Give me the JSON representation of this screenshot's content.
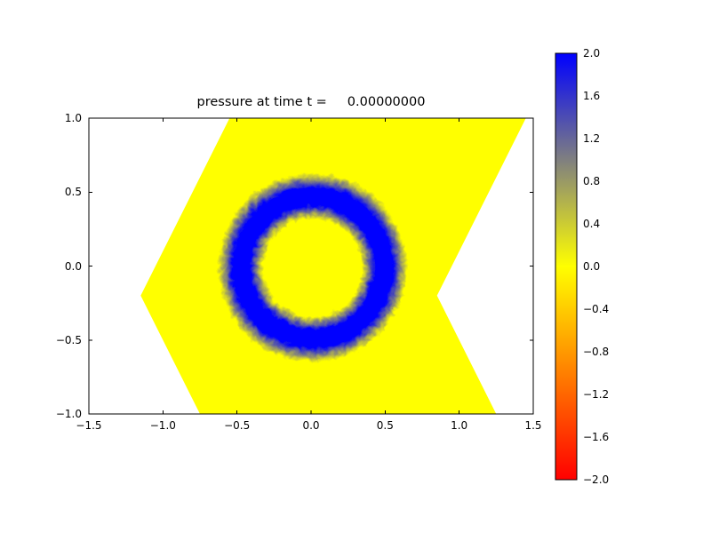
{
  "chart_data": {
    "type": "pseudocolor-mesh",
    "title": "pressure at time t =     0.00000000",
    "xlim": [
      -1.5,
      1.5
    ],
    "ylim": [
      -1.0,
      1.0
    ],
    "grid": false,
    "xticks": [
      -1.5,
      -1.0,
      -0.5,
      0.0,
      0.5,
      1.0,
      1.5
    ],
    "xticklabels": [
      "−1.5",
      "−1.0",
      "−0.5",
      "0.0",
      "0.5",
      "1.0",
      "1.5"
    ],
    "yticks": [
      1.0,
      0.5,
      0.0,
      -0.5,
      -1.0
    ],
    "yticklabels": [
      "1.0",
      "0.5",
      "0.0",
      "−0.5",
      "−1.0"
    ],
    "colormap": {
      "vmin": -2.0,
      "vmid": 0.0,
      "vmax": 2.0,
      "min_color": "#ff0000",
      "mid_color": "#ffff00",
      "max_color": "#0000ff"
    },
    "colorbar": {
      "position": "right",
      "ticks": [
        2.0,
        1.6,
        1.2,
        0.8,
        0.4,
        0.0,
        -0.4,
        -0.8,
        -1.2,
        -1.6,
        -2.0
      ],
      "ticklabels": [
        "2.0",
        "1.6",
        "1.2",
        "0.8",
        "0.4",
        "0.0",
        "−0.4",
        "−0.8",
        "−1.2",
        "−1.6",
        "−2.0"
      ]
    },
    "domain_polygon": [
      [
        -0.55,
        1.0
      ],
      [
        1.45,
        1.0
      ],
      [
        0.85,
        -0.2
      ],
      [
        1.25,
        -1.0
      ],
      [
        -0.75,
        -1.0
      ],
      [
        -1.15,
        -0.2
      ]
    ],
    "background_value": 0.0,
    "ring_pulse": {
      "center": [
        0.0,
        0.0
      ],
      "profile": [
        {
          "r": 0.0,
          "value": 0.0
        },
        {
          "r": 0.33,
          "value": 0.0
        },
        {
          "r": 0.42,
          "value": 2.0
        },
        {
          "r": 0.54,
          "value": 2.0
        },
        {
          "r": 0.64,
          "value": 0.0
        },
        {
          "r": 0.7,
          "value": 0.0
        }
      ]
    }
  }
}
